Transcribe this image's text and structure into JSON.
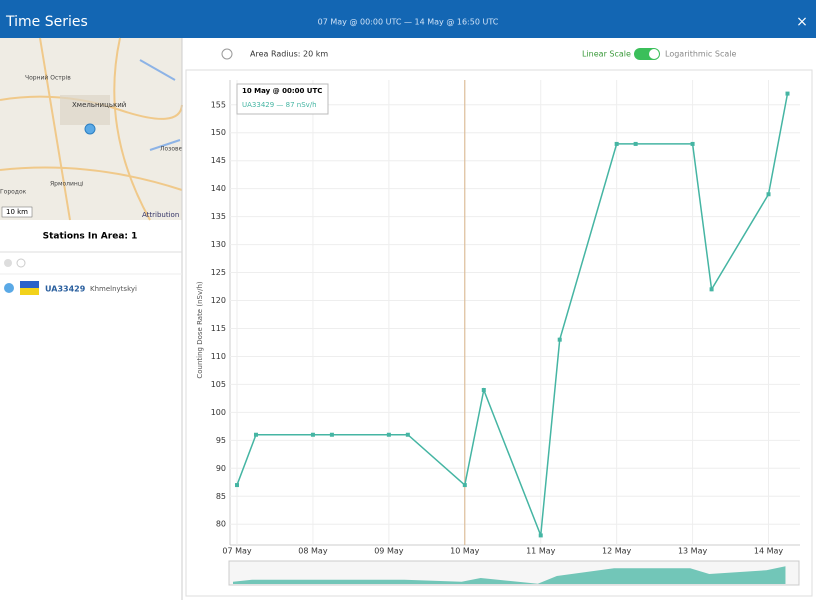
{
  "header": {
    "title": "Time Series",
    "range": "07 May @ 00:00 UTC — 14 May @ 16:50 UTC",
    "close": "×"
  },
  "map": {
    "places": [
      "Чорний Острів",
      "Хмельницький",
      "Лозове",
      "Ярмолинці",
      "Городок"
    ],
    "scale": "10 km",
    "attribution": "Attribution"
  },
  "sidebar": {
    "stations_heading": "Stations In Area: 1",
    "station": {
      "id": "UA33429",
      "name": "Khmelnytskyi"
    }
  },
  "toolbar": {
    "radius": "Area Radius: 20 km",
    "linear": "Linear Scale",
    "log": "Logarithmic Scale"
  },
  "tooltip": {
    "time": "10 May @ 00:00 UTC",
    "entry": "UA33429 — 87 nSv/h"
  },
  "chart_data": {
    "type": "line",
    "y_label": "Counting Dose Rate (nSv/h)",
    "x": [
      "07 May 00:00",
      "07 May 06:00",
      "08 May 00:00",
      "08 May 06:00",
      "09 May 00:00",
      "09 May 06:00",
      "10 May 00:00",
      "10 May 06:00",
      "11 May 00:00",
      "11 May 06:00",
      "12 May 00:00",
      "12 May 06:00",
      "13 May 00:00",
      "13 May 06:00",
      "14 May 00:00",
      "14 May 06:00"
    ],
    "series": [
      {
        "name": "UA33429",
        "color": "#45b5a3",
        "values": [
          87,
          96,
          96,
          96,
          96,
          96,
          87,
          104,
          78,
          113,
          148,
          148,
          148,
          122,
          139,
          157
        ]
      }
    ],
    "xlim": [
      "07 May 00:00",
      "14 May 09:00"
    ],
    "xticks": [
      {
        "value": "07 May 00:00",
        "label": "07 May"
      },
      {
        "value": "08 May 00:00",
        "label": "08 May"
      },
      {
        "value": "09 May 00:00",
        "label": "09 May"
      },
      {
        "value": "10 May 00:00",
        "label": "10 May"
      },
      {
        "value": "11 May 00:00",
        "label": "11 May"
      },
      {
        "value": "12 May 00:00",
        "label": "12 May"
      },
      {
        "value": "13 May 00:00",
        "label": "13 May"
      },
      {
        "value": "14 May 00:00",
        "label": "14 May"
      }
    ],
    "ylim": [
      77,
      158
    ],
    "yticks": [
      80,
      85,
      90,
      95,
      100,
      105,
      110,
      115,
      120,
      125,
      130,
      135,
      140,
      145,
      150,
      155
    ],
    "grid": true
  }
}
